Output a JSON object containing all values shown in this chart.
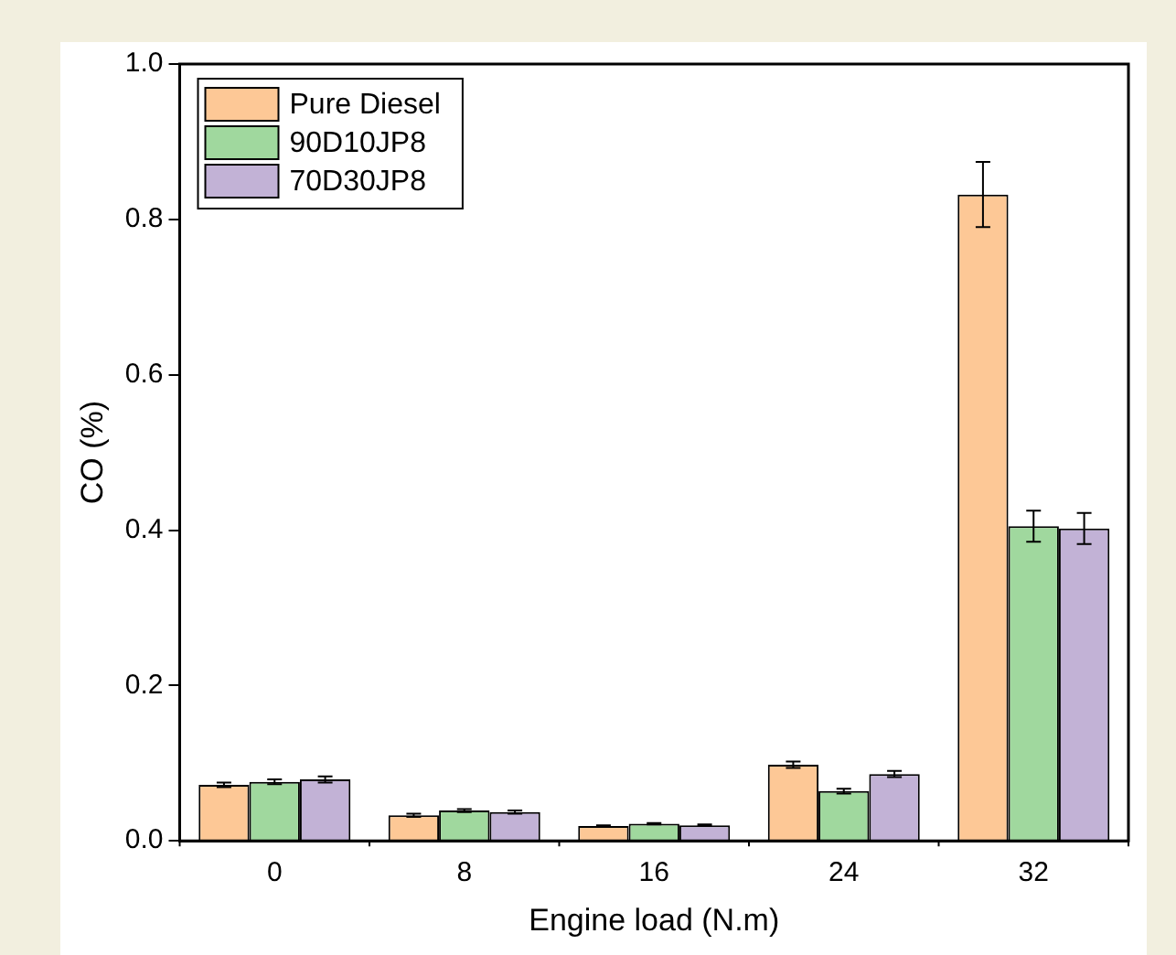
{
  "chart_data": {
    "type": "bar",
    "xlabel": "Engine load (N.m)",
    "ylabel": "CO (%)",
    "categories": [
      "0",
      "8",
      "16",
      "24",
      "32"
    ],
    "series": [
      {
        "name": "Pure Diesel",
        "color": "#fdc896",
        "values": [
          0.072,
          0.033,
          0.019,
          0.098,
          0.832
        ],
        "errors": [
          0.003,
          0.002,
          0.001,
          0.004,
          0.042
        ]
      },
      {
        "name": "90D10JP8",
        "color": "#a0d89e",
        "values": [
          0.076,
          0.039,
          0.022,
          0.064,
          0.405
        ],
        "errors": [
          0.003,
          0.002,
          0.001,
          0.003,
          0.02
        ]
      },
      {
        "name": "70D30JP8",
        "color": "#c2b2d6",
        "values": [
          0.079,
          0.037,
          0.02,
          0.086,
          0.402
        ],
        "errors": [
          0.004,
          0.002,
          0.001,
          0.004,
          0.02
        ]
      }
    ],
    "ylim": [
      0,
      1.0
    ],
    "yticks": [
      {
        "value": 0,
        "label": "0.0"
      },
      {
        "value": 0.2,
        "label": "0.2"
      },
      {
        "value": 0.4,
        "label": "0.4"
      },
      {
        "value": 0.6,
        "label": "0.6"
      },
      {
        "value": 0.8,
        "label": "0.8"
      },
      {
        "value": 1.0,
        "label": "1.0"
      }
    ],
    "grid": false,
    "legend": "top left"
  }
}
